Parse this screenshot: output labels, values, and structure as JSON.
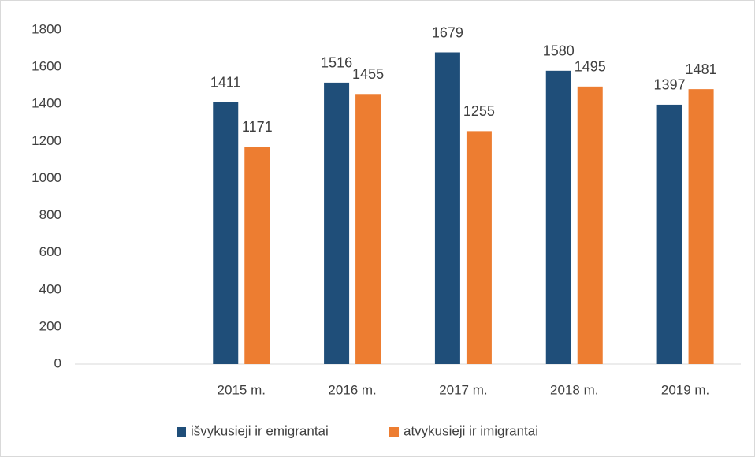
{
  "chart_data": {
    "type": "bar",
    "categories": [
      null,
      "2015 m.",
      "2016 m.",
      "2017 m.",
      "2018 m.",
      "2019 m."
    ],
    "series": [
      {
        "name": "išvykusieji ir emigrantai",
        "color": "#1f4e79",
        "values": [
          null,
          1411,
          1516,
          1679,
          1580,
          1397
        ]
      },
      {
        "name": "atvykusieji ir imigrantai",
        "color": "#ed7d31",
        "values": [
          null,
          1171,
          1455,
          1255,
          1495,
          1481
        ]
      }
    ],
    "ylim": [
      0,
      1800
    ],
    "yticks": [
      0,
      200,
      400,
      600,
      800,
      1000,
      1200,
      1400,
      1600,
      1800
    ],
    "grid": false,
    "legend": "bottom"
  }
}
